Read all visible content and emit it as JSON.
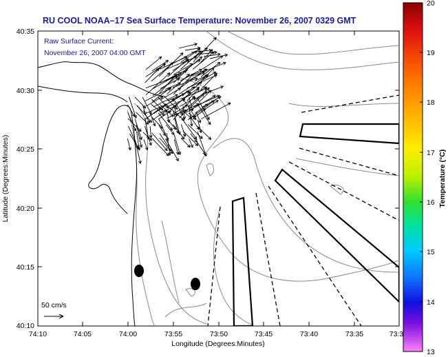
{
  "title": "RU COOL  NOAA–17  Sea Surface Temperature:  November 26, 2007 0329 GMT",
  "annotation": {
    "line1": "Raw Surface Current:",
    "line2": "November 26, 2007 04:00 GMT"
  },
  "scale": {
    "label": "50 cm/s"
  },
  "x_axis": {
    "label": "Longitude (Degrees:Minutes)",
    "ticks": [
      "74:10",
      "74:05",
      "74:00",
      "73:55",
      "73:50",
      "73:45",
      "73:40",
      "73:35",
      "73:3"
    ]
  },
  "y_axis": {
    "label": "Latitude (Degrees:Minutes)",
    "ticks": [
      "40:35",
      "40:30",
      "40:25",
      "40:20",
      "40:15",
      "40:10"
    ]
  },
  "colorbar": {
    "label": "Temperature (°C)",
    "ticks": [
      "20",
      "19",
      "18",
      "17",
      "16",
      "15",
      "14",
      "13"
    ],
    "min": 13,
    "max": 20
  }
}
